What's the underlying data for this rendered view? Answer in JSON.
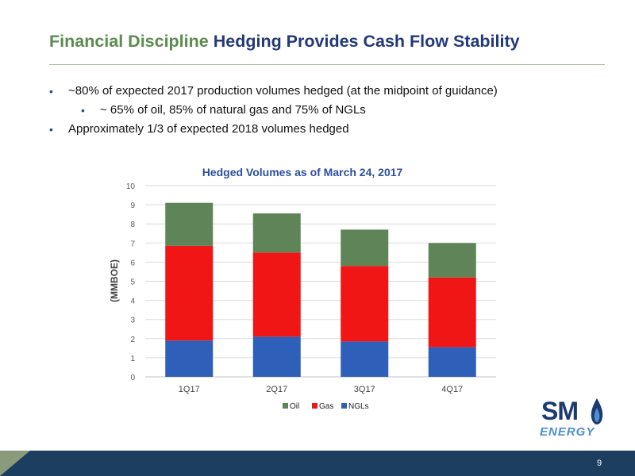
{
  "title": {
    "part1": "Financial Discipline",
    "part2": "Hedging Provides Cash Flow Stability"
  },
  "bullets": [
    "~80% of expected 2017 production volumes hedged (at the midpoint of guidance)",
    "~ 65% of oil, 85% of natural gas and 75% of NGLs",
    "Approximately 1/3 of expected 2018 volumes hedged"
  ],
  "bullet_char": "•",
  "chart_data": {
    "type": "bar",
    "stacked": true,
    "title": "Hedged Volumes as of March 24, 2017",
    "ylabel": "(MMBOE)",
    "xlabel": "",
    "ylim": [
      0,
      10
    ],
    "yticks": [
      "0",
      "1",
      "2",
      "3",
      "4",
      "5",
      "6",
      "7",
      "8",
      "9",
      "10"
    ],
    "categories": [
      "1Q17",
      "2Q17",
      "3Q17",
      "4Q17"
    ],
    "series": [
      {
        "name": "NGLs",
        "color": "#2e5fb9",
        "values": [
          1.9,
          2.1,
          1.85,
          1.55
        ]
      },
      {
        "name": "Gas",
        "color": "#f01616",
        "values": [
          4.95,
          4.4,
          3.95,
          3.65
        ]
      },
      {
        "name": "Oil",
        "color": "#5f8458",
        "values": [
          2.25,
          2.05,
          1.9,
          1.8
        ]
      }
    ],
    "legend_order": [
      "Oil",
      "Gas",
      "NGLs"
    ],
    "legend_position": "bottom",
    "grid": true
  },
  "logo": {
    "name": "SM",
    "sub": "ENERGY"
  },
  "footer": {
    "page_number": "9"
  }
}
